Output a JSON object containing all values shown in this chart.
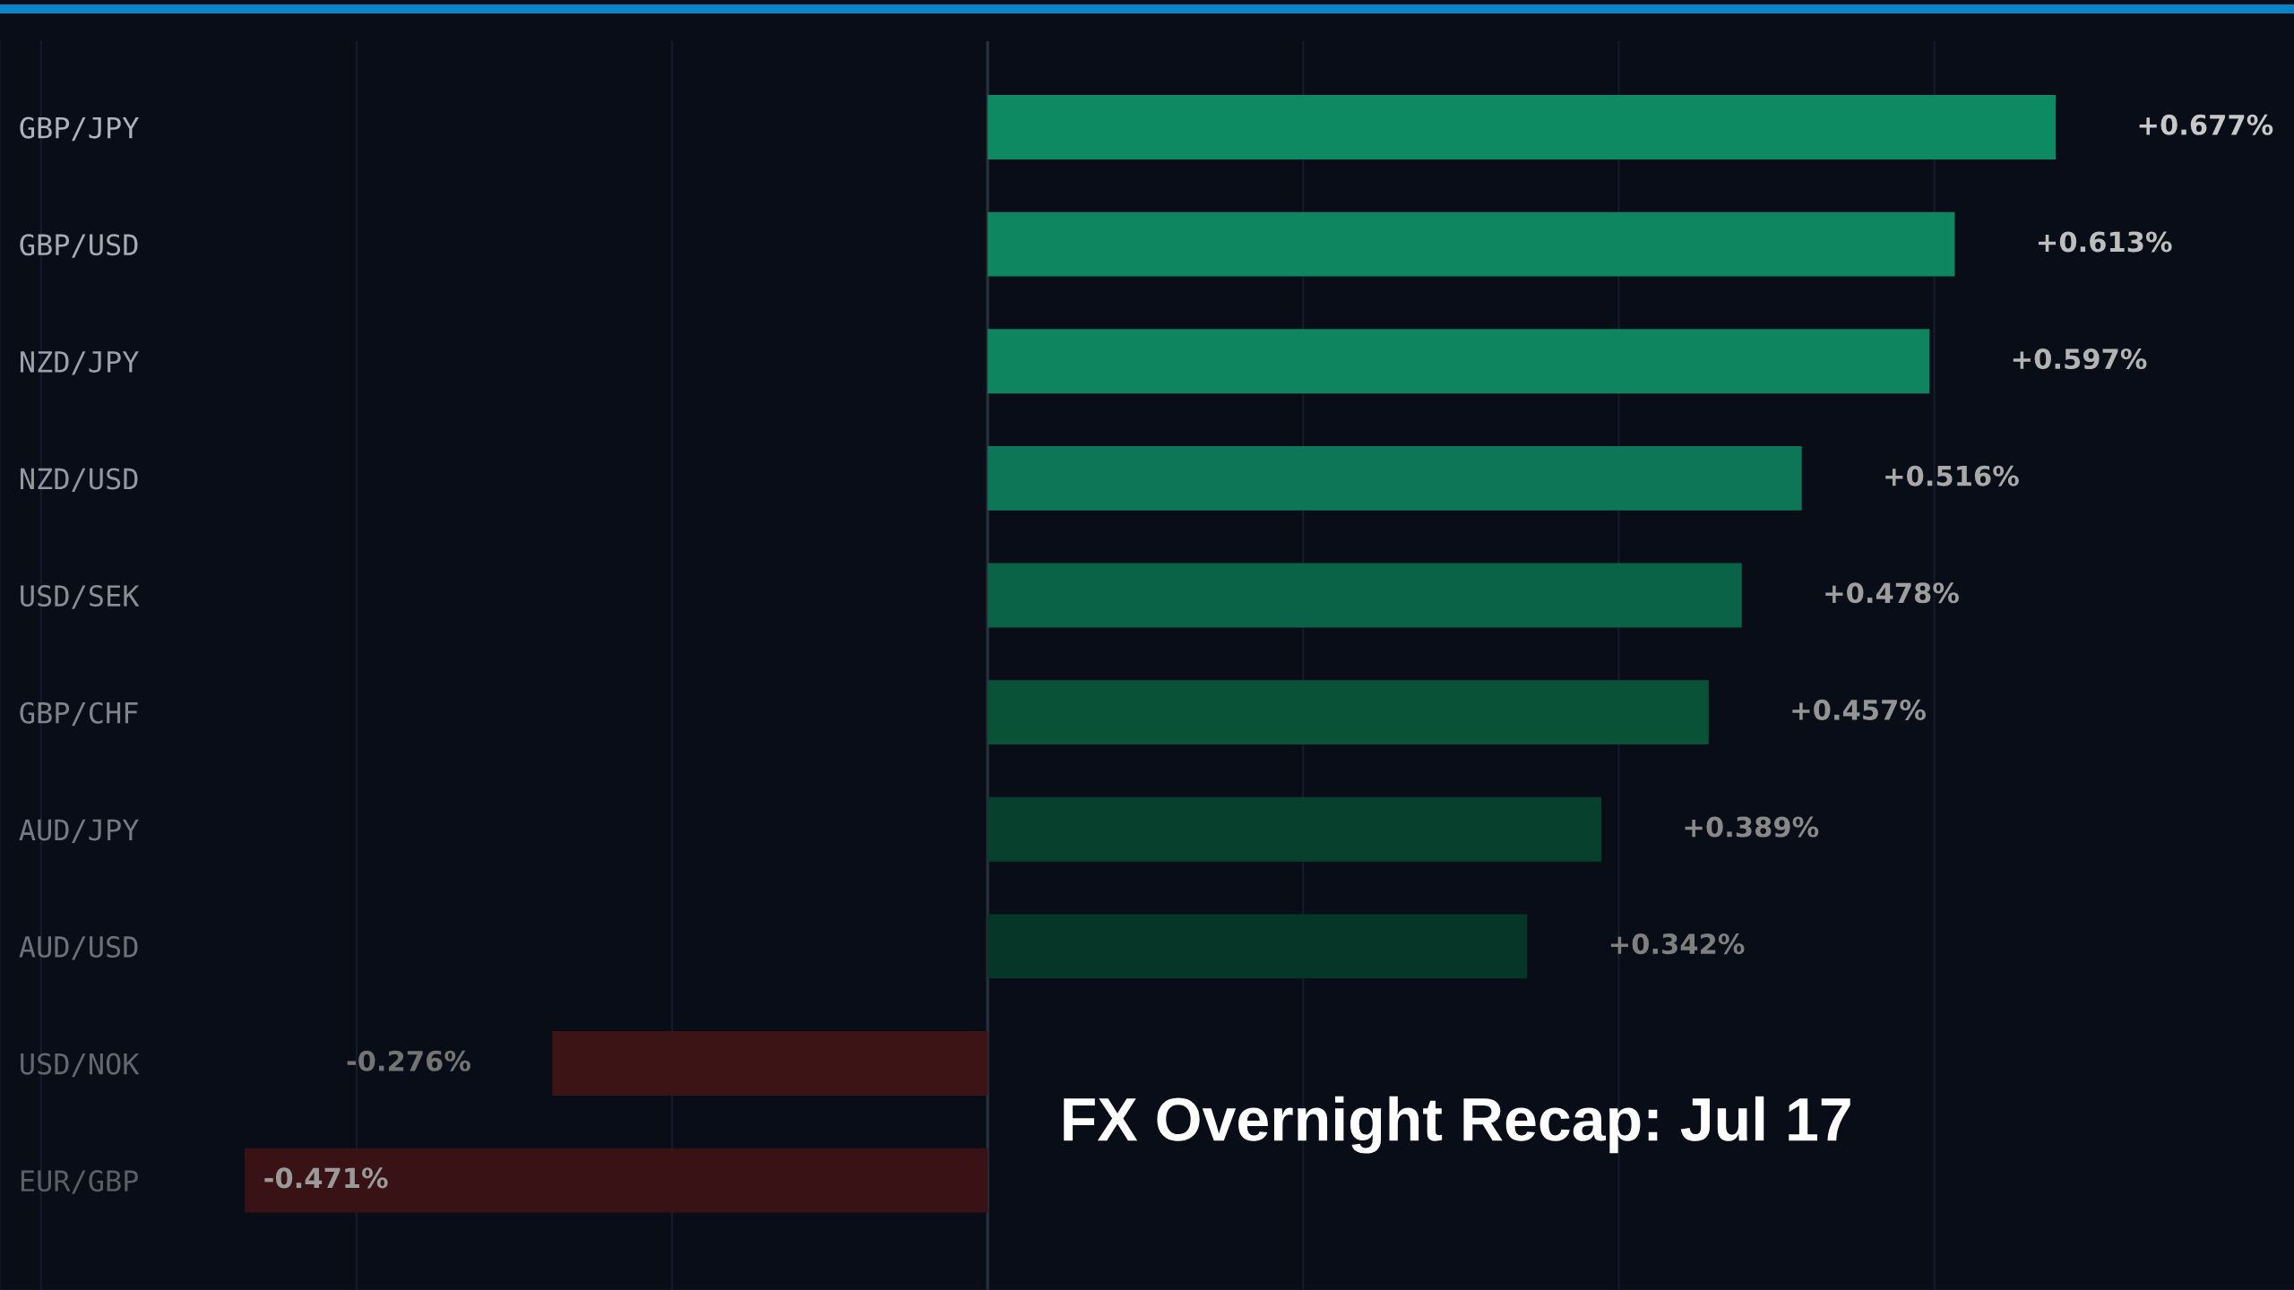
{
  "chart_data": {
    "type": "bar",
    "orientation": "horizontal",
    "title": "FX Overnight Recap: Jul 17",
    "categories": [
      "GBP/JPY",
      "GBP/USD",
      "NZD/JPY",
      "NZD/USD",
      "USD/SEK",
      "GBP/CHF",
      "AUD/JPY",
      "AUD/USD",
      "USD/NOK",
      "EUR/GBP"
    ],
    "values": [
      0.677,
      0.613,
      0.597,
      0.516,
      0.478,
      0.457,
      0.389,
      0.342,
      -0.276,
      -0.471
    ],
    "value_labels": [
      "+0.677%",
      "+0.613%",
      "+0.597%",
      "+0.516%",
      "+0.478%",
      "+0.457%",
      "+0.389%",
      "+0.342%",
      "-0.276%",
      "-0.471%"
    ],
    "colors": [
      "#0e8a62",
      "#0e8760",
      "#0e855f",
      "#0c7656",
      "#0b6347",
      "#095238",
      "#07412e",
      "#053628",
      "#3d1416",
      "#381214"
    ],
    "xlim": [
      -0.626,
      0.828
    ],
    "xticks": [
      {
        "value": -0.6,
        "label": null
      },
      {
        "value": -0.4,
        "label": null
      },
      {
        "value": -0.2,
        "label": null
      },
      {
        "value": 0,
        "label": null
      },
      {
        "value": 0.2,
        "label": null
      },
      {
        "value": 0.4,
        "label": null
      },
      {
        "value": 0.6,
        "label": null
      }
    ],
    "grid": "x",
    "tick_labels": "y"
  }
}
